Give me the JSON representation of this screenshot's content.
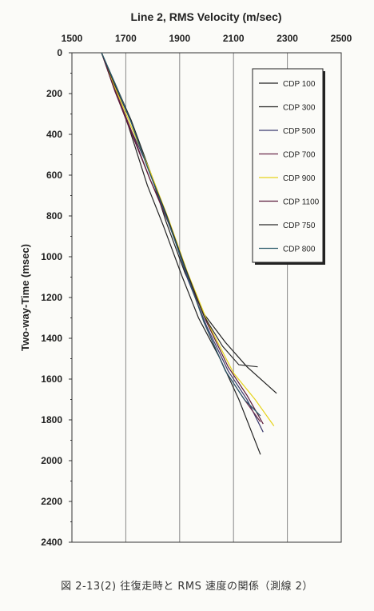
{
  "caption": "図 2-13(2) 往復走時と RMS 速度の関係（測線 2）",
  "chart_data": {
    "type": "line",
    "title": "Line 2, RMS Velocity (m/sec)",
    "xlabel": "",
    "ylabel": "Two-way-Time (msec)",
    "xlim": [
      1500,
      2500
    ],
    "ylim": [
      0,
      2400
    ],
    "x_axis_position": "top",
    "y_axis_inverted": true,
    "xticks": [
      1500,
      1700,
      1900,
      2100,
      2300,
      2500
    ],
    "yticks": [
      0,
      200,
      400,
      600,
      800,
      1000,
      1200,
      1400,
      1600,
      1800,
      2000,
      2200,
      2400
    ],
    "grid": "vertical",
    "legend_position": "top-right",
    "series": [
      {
        "name": "CDP 100",
        "color": "#222222",
        "x": [
          1610,
          1660,
          1720,
          1790,
          1850,
          1920,
          1990,
          2070,
          2150,
          2260
        ],
        "y": [
          0,
          150,
          330,
          580,
          830,
          1080,
          1280,
          1420,
          1540,
          1670
        ]
      },
      {
        "name": "CDP 300",
        "color": "#222222",
        "x": [
          1610,
          1650,
          1710,
          1780,
          1840,
          1910,
          1970,
          2050,
          2120,
          2200
        ],
        "y": [
          0,
          150,
          360,
          650,
          850,
          1100,
          1300,
          1500,
          1700,
          1970
        ]
      },
      {
        "name": "CDP 500",
        "color": "#3a3a6e",
        "x": [
          1610,
          1660,
          1720,
          1790,
          1860,
          1930,
          2000,
          2080,
          2150,
          2210
        ],
        "y": [
          0,
          180,
          380,
          580,
          830,
          1110,
          1340,
          1560,
          1700,
          1860
        ]
      },
      {
        "name": "CDP 700",
        "color": "#6a2a4a",
        "x": [
          1610,
          1660,
          1720,
          1790,
          1860,
          1920,
          1990,
          2070,
          2140,
          2200
        ],
        "y": [
          0,
          180,
          380,
          620,
          840,
          1050,
          1320,
          1560,
          1700,
          1810
        ]
      },
      {
        "name": "CDP 900",
        "color": "#e6d31c",
        "x": [
          1610,
          1660,
          1720,
          1790,
          1860,
          1930,
          2010,
          2100,
          2180,
          2250
        ],
        "y": [
          0,
          170,
          360,
          580,
          820,
          1080,
          1340,
          1570,
          1700,
          1830
        ]
      },
      {
        "name": "CDP 1100",
        "color": "#5a1a3a",
        "x": [
          1610,
          1660,
          1720,
          1790,
          1860,
          1930,
          2000,
          2080,
          2150,
          2210
        ],
        "y": [
          0,
          190,
          390,
          620,
          830,
          1100,
          1320,
          1540,
          1680,
          1820
        ]
      },
      {
        "name": "CDP 750",
        "color": "#2a2a2a",
        "x": [
          1610,
          1660,
          1720,
          1780,
          1850,
          1920,
          1990,
          2060,
          2120,
          2190
        ],
        "y": [
          0,
          160,
          340,
          560,
          790,
          1050,
          1290,
          1440,
          1530,
          1540
        ]
      },
      {
        "name": "CDP 800",
        "color": "#2a5a6a",
        "x": [
          1610,
          1660,
          1720,
          1780,
          1850,
          1920,
          1990,
          2070,
          2140,
          2200
        ],
        "y": [
          0,
          150,
          340,
          560,
          800,
          1060,
          1320,
          1560,
          1700,
          1780
        ]
      }
    ]
  }
}
